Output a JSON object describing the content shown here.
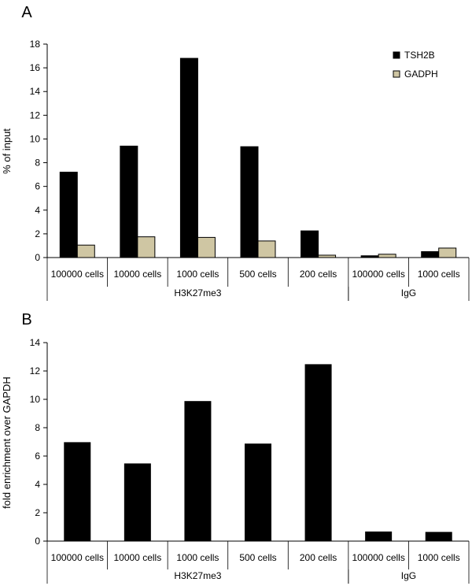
{
  "chart_data": [
    {
      "panel_label": "A",
      "type": "bar",
      "ylabel": "% of input",
      "ylim": [
        0,
        18
      ],
      "yticks": [
        "0",
        "2",
        "4",
        "6",
        "8",
        "10",
        "12",
        "14",
        "16",
        "18"
      ],
      "grid": false,
      "legend_position": "top-right",
      "categories": [
        "100000 cells",
        "10000 cells",
        "1000 cells",
        "500 cells",
        "200 cells",
        "100000 cells",
        "1000 cells"
      ],
      "groups": [
        {
          "label": "H3K27me3",
          "count": 5
        },
        {
          "label": "IgG",
          "count": 2
        }
      ],
      "series": [
        {
          "name": "TSH2B",
          "color": "#000000",
          "values": [
            7.2,
            9.4,
            16.8,
            9.35,
            2.25,
            0.15,
            0.5
          ]
        },
        {
          "name": "GADPH",
          "color": "#cfc6a3",
          "values": [
            1.05,
            1.75,
            1.7,
            1.4,
            0.2,
            0.28,
            0.8
          ]
        }
      ]
    },
    {
      "panel_label": "B",
      "type": "bar",
      "ylabel": "fold enrichment over GAPDH",
      "ylim": [
        0,
        14
      ],
      "yticks": [
        "0",
        "2",
        "4",
        "6",
        "8",
        "10",
        "12",
        "14"
      ],
      "grid": false,
      "categories": [
        "100000 cells",
        "10000 cells",
        "1000 cells",
        "500 cells",
        "200 cells",
        "100000 cells",
        "1000 cells"
      ],
      "groups": [
        {
          "label": "H3K27me3",
          "count": 5
        },
        {
          "label": "IgG",
          "count": 2
        }
      ],
      "series": [
        {
          "color": "#000000",
          "values": [
            6.95,
            5.45,
            9.85,
            6.85,
            12.45,
            0.65,
            0.62
          ]
        }
      ]
    }
  ]
}
